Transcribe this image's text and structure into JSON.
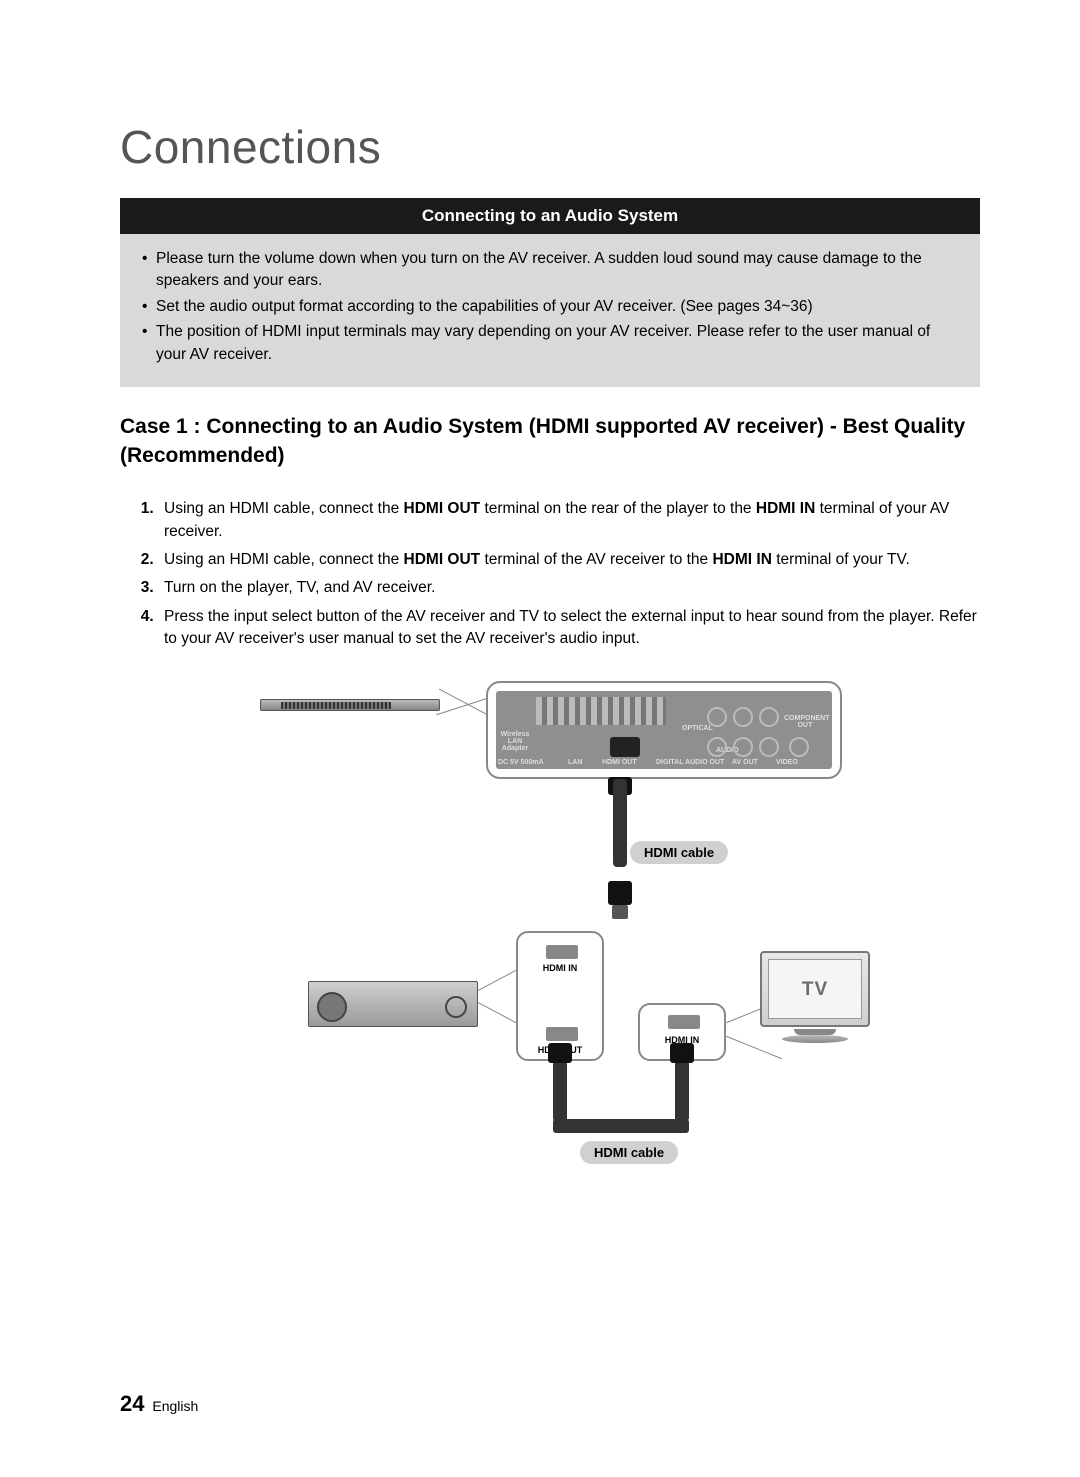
{
  "pageTitle": "Connections",
  "sectionHeader": "Connecting to an Audio System",
  "notes": [
    "Please turn the volume down when you turn on the AV receiver. A sudden loud sound may cause damage to the speakers and your ears.",
    "Set the audio output format according to the capabilities of your AV receiver. (See pages 34~36)",
    "The position of HDMI input terminals may vary depending on your AV receiver. Please refer to the user manual of your AV receiver."
  ],
  "caseHeading": "Case 1 : Connecting to an Audio System (HDMI supported AV receiver) - Best Quality (Recommended)",
  "steps": [
    "Using an HDMI cable, connect the <b>HDMI OUT</b> terminal on the rear of the player to the <b>HDMI IN</b> terminal of your AV receiver.",
    "Using an HDMI cable, connect the <b>HDMI OUT</b> terminal of the AV receiver to the <b>HDMI IN</b> terminal of your TV.",
    "Turn on the player, TV, and AV receiver.",
    "Press the input select button of the AV receiver and TV to select the external input to hear sound from the player. Refer to your AV receiver's user manual to set the AV receiver's audio input."
  ],
  "diagram": {
    "hdmiCableLabel": "HDMI cable",
    "hdmiIn": "HDMI IN",
    "hdmiOut": "HDMI OUT",
    "tvLabel": "TV",
    "rearPortLabels": {
      "lan": "LAN",
      "hdmiOut": "HDMI OUT",
      "optical": "OPTICAL",
      "digitalAudioOut": "DIGITAL AUDIO OUT",
      "audio": "AUDIO",
      "avOut": "AV OUT",
      "video": "VIDEO",
      "componentOut": "COMPONENT OUT",
      "wirelessLan": "Wireless LAN Adapter",
      "dc": "DC 5V 500mA"
    },
    "colors": {
      "panelBorder": "#888888",
      "darkBar": "#1a1a1a",
      "greyBox": "#d9d9d9",
      "pill": "#d0d0d0",
      "cable": "#333333"
    }
  },
  "footer": {
    "pageNumber": "24",
    "language": "English"
  }
}
